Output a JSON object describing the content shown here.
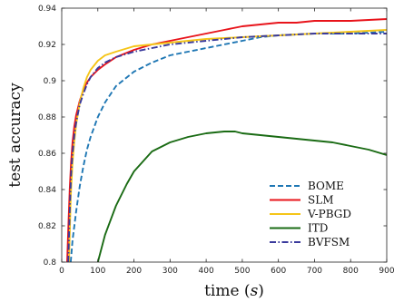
{
  "chart_data": {
    "type": "line",
    "xlabel_prefix": "time (",
    "xlabel_var": "s",
    "xlabel_suffix": ")",
    "ylabel": "test accuracy",
    "xlim": [
      0,
      900
    ],
    "ylim": [
      0.8,
      0.94
    ],
    "xticks": [
      0,
      100,
      200,
      300,
      400,
      500,
      600,
      700,
      800,
      900
    ],
    "yticks": [
      0.8,
      0.82,
      0.84,
      0.86,
      0.88,
      0.9,
      0.92,
      0.94
    ],
    "ytick_labels": [
      "0.8",
      "0.82",
      "0.84",
      "0.86",
      "0.88",
      "0.9",
      "0.92",
      "0.94"
    ],
    "grid": false,
    "legend_position": "bottom-right",
    "series": [
      {
        "name": "BOME",
        "color": "#1f77b4",
        "dash": "dashed",
        "x": [
          25,
          30,
          40,
          50,
          60,
          70,
          80,
          100,
          120,
          150,
          200,
          250,
          300,
          350,
          400,
          450,
          500,
          550,
          600,
          700,
          800,
          900
        ],
        "y": [
          0.8,
          0.812,
          0.828,
          0.842,
          0.853,
          0.862,
          0.869,
          0.88,
          0.888,
          0.897,
          0.905,
          0.91,
          0.914,
          0.916,
          0.918,
          0.92,
          0.922,
          0.924,
          0.925,
          0.926,
          0.926,
          0.927
        ]
      },
      {
        "name": "SLM",
        "color": "#e8141b",
        "dash": "solid",
        "x": [
          15,
          18,
          22,
          26,
          30,
          35,
          40,
          50,
          60,
          70,
          80,
          100,
          120,
          150,
          200,
          250,
          300,
          350,
          400,
          450,
          500,
          550,
          600,
          650,
          700,
          800,
          900
        ],
        "y": [
          0.8,
          0.818,
          0.84,
          0.855,
          0.866,
          0.875,
          0.881,
          0.889,
          0.895,
          0.899,
          0.902,
          0.906,
          0.909,
          0.913,
          0.917,
          0.92,
          0.922,
          0.924,
          0.926,
          0.928,
          0.93,
          0.931,
          0.932,
          0.932,
          0.933,
          0.933,
          0.934
        ]
      },
      {
        "name": "V-PBGD",
        "color": "#f5c518",
        "dash": "solid",
        "x": [
          20,
          25,
          30,
          35,
          40,
          50,
          60,
          70,
          80,
          100,
          120,
          150,
          200,
          250,
          300,
          400,
          500,
          600,
          700,
          800,
          900
        ],
        "y": [
          0.8,
          0.836,
          0.855,
          0.867,
          0.876,
          0.888,
          0.896,
          0.902,
          0.906,
          0.911,
          0.914,
          0.916,
          0.919,
          0.92,
          0.921,
          0.923,
          0.924,
          0.925,
          0.926,
          0.927,
          0.928
        ]
      },
      {
        "name": "ITD",
        "color": "#1a6b14",
        "dash": "solid",
        "x": [
          100,
          120,
          150,
          180,
          200,
          250,
          300,
          350,
          400,
          450,
          480,
          500,
          550,
          600,
          650,
          700,
          750,
          800,
          850,
          900
        ],
        "y": [
          0.8,
          0.815,
          0.831,
          0.843,
          0.85,
          0.861,
          0.866,
          0.869,
          0.871,
          0.872,
          0.872,
          0.871,
          0.87,
          0.869,
          0.868,
          0.867,
          0.866,
          0.864,
          0.862,
          0.859
        ]
      },
      {
        "name": "BVFSM",
        "color": "#3a3a9c",
        "dash": "dashdot",
        "x": [
          18,
          22,
          26,
          30,
          35,
          40,
          50,
          60,
          70,
          80,
          100,
          120,
          150,
          200,
          250,
          300,
          400,
          500,
          600,
          700,
          800,
          900
        ],
        "y": [
          0.8,
          0.828,
          0.848,
          0.86,
          0.87,
          0.877,
          0.887,
          0.893,
          0.898,
          0.902,
          0.907,
          0.91,
          0.913,
          0.916,
          0.918,
          0.92,
          0.922,
          0.924,
          0.925,
          0.926,
          0.926,
          0.926
        ]
      }
    ]
  }
}
